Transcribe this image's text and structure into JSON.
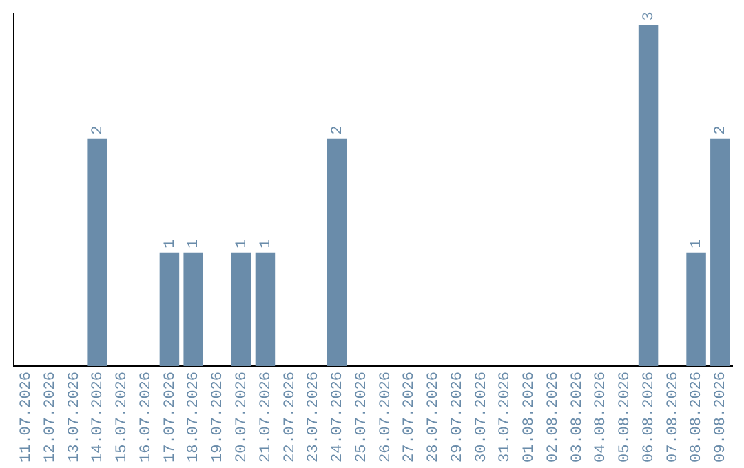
{
  "chart_data": {
    "type": "bar",
    "categories": [
      "11.07.2026",
      "12.07.2026",
      "13.07.2026",
      "14.07.2026",
      "15.07.2026",
      "16.07.2026",
      "17.07.2026",
      "18.07.2026",
      "19.07.2026",
      "20.07.2026",
      "21.07.2026",
      "22.07.2026",
      "23.07.2026",
      "24.07.2026",
      "25.07.2026",
      "26.07.2026",
      "27.07.2026",
      "28.07.2026",
      "29.07.2026",
      "30.07.2026",
      "31.07.2026",
      "01.08.2026",
      "02.08.2026",
      "03.08.2026",
      "04.08.2026",
      "05.08.2026",
      "06.08.2026",
      "07.08.2026",
      "08.08.2026",
      "09.08.2026"
    ],
    "values": [
      0,
      0,
      0,
      2,
      0,
      0,
      1,
      1,
      0,
      1,
      1,
      0,
      0,
      2,
      0,
      0,
      0,
      0,
      0,
      0,
      0,
      0,
      0,
      0,
      0,
      0,
      3,
      0,
      1,
      2
    ],
    "value_labels": [
      null,
      null,
      null,
      "2",
      null,
      null,
      "1",
      "1",
      null,
      "1",
      "1",
      null,
      null,
      "2",
      null,
      null,
      null,
      null,
      null,
      null,
      null,
      null,
      null,
      null,
      null,
      null,
      "3",
      null,
      "1",
      "2"
    ],
    "color": "#6a8caa",
    "ylim": [
      0,
      3.1
    ],
    "tick_labels": "x",
    "grid": false,
    "legend": false
  }
}
